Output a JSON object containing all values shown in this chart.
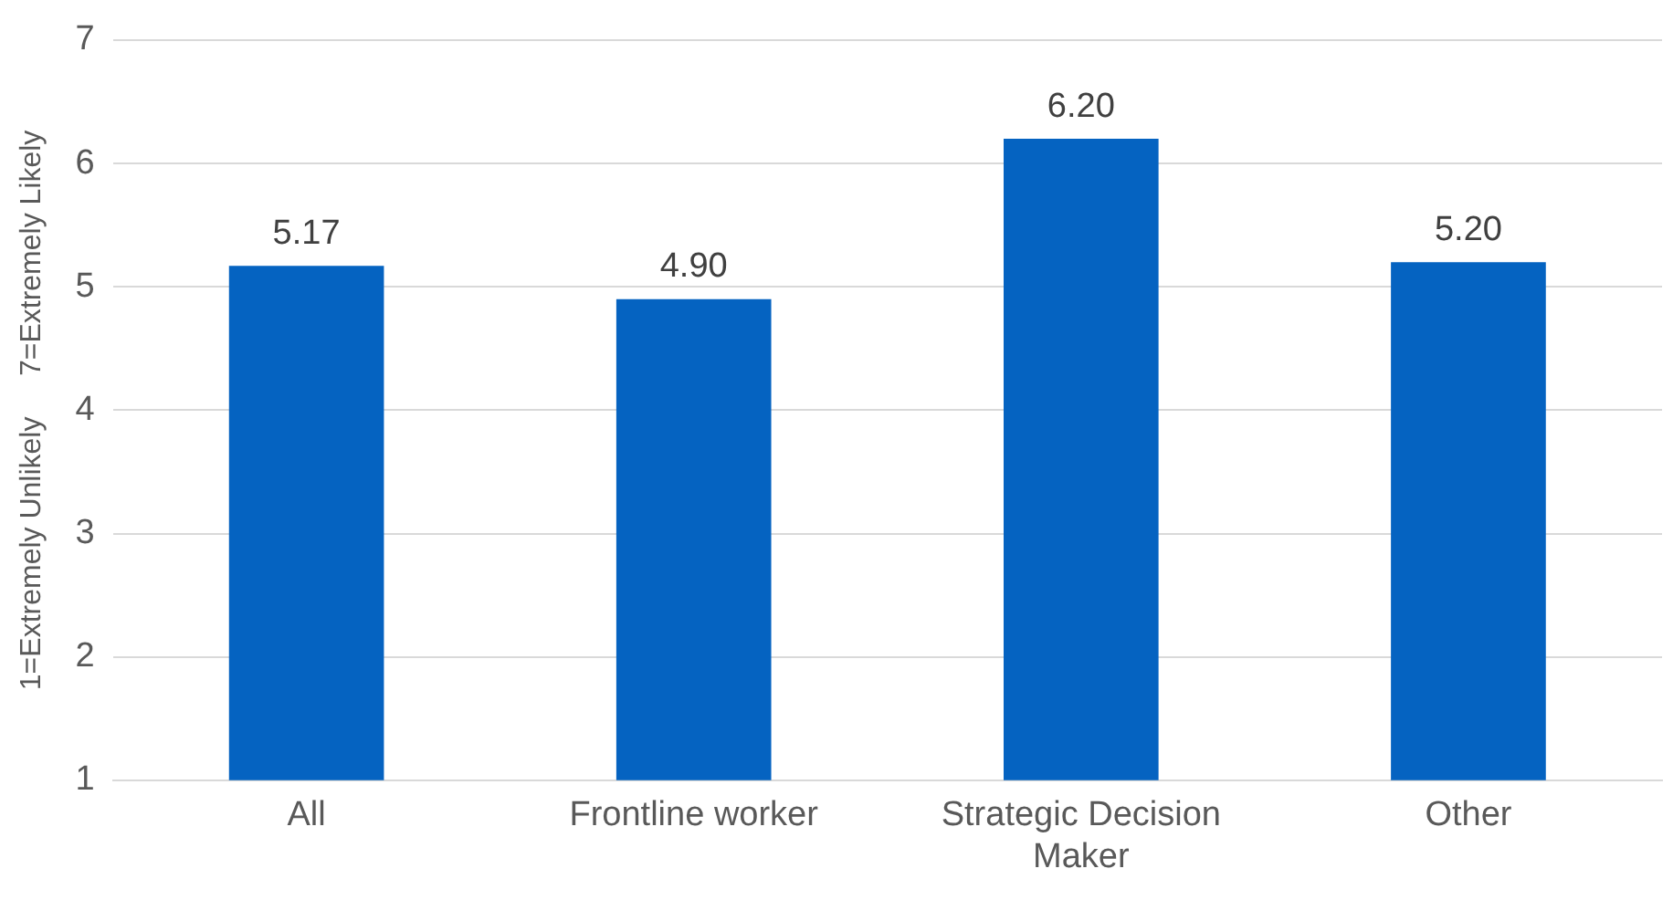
{
  "chart_data": {
    "type": "bar",
    "ylabel": "1=Extremely Unlikely     7=Extremely Likely",
    "categories": [
      "All",
      "Frontline worker",
      "Strategic Decision Maker",
      "Other"
    ],
    "values": [
      5.17,
      4.9,
      6.2,
      5.2
    ],
    "value_labels": [
      "5.17",
      "4.90",
      "6.20",
      "5.20"
    ],
    "color": "#0563c1",
    "ylim": [
      1,
      7
    ],
    "yticks": [
      1,
      2,
      3,
      4,
      5,
      6,
      7
    ],
    "grid": "y",
    "legend": false
  }
}
